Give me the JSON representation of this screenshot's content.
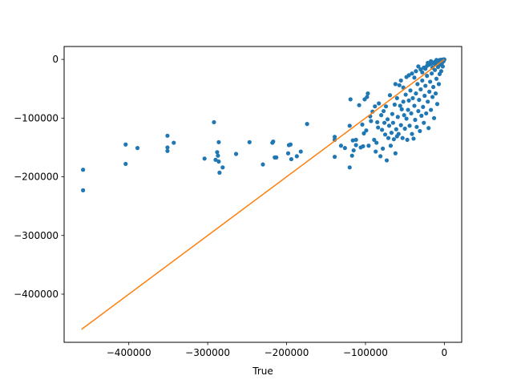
{
  "colors": {
    "scatter": "#1f77b4",
    "line": "#ff7f0e",
    "axis": "#000000",
    "background": "#ffffff"
  },
  "chart_data": {
    "type": "scatter",
    "title": "",
    "xlabel": "True",
    "ylabel": "",
    "xlim": [
      -482000,
      22000
    ],
    "ylim": [
      -482000,
      22000
    ],
    "grid": false,
    "xticks": [
      -400000,
      -300000,
      -200000,
      -100000,
      0
    ],
    "xtick_labels": [
      "−400000",
      "−300000",
      "−200000",
      "−100000",
      "0"
    ],
    "yticks": [
      0,
      -100000,
      -200000,
      -300000,
      -400000
    ],
    "ytick_labels": [
      "0",
      "−100000",
      "−200000",
      "−300000",
      "−400000"
    ],
    "series": [
      {
        "type": "scatter",
        "points": [
          [
            -458000,
            -188000
          ],
          [
            -458000,
            -223000
          ],
          [
            -404000,
            -145000
          ],
          [
            -404000,
            -178000
          ],
          [
            -389000,
            -151000
          ],
          [
            -351000,
            -130000
          ],
          [
            -351000,
            -150000
          ],
          [
            -351000,
            -156000
          ],
          [
            -343000,
            -142000
          ],
          [
            -304000,
            -169000
          ],
          [
            -292000,
            -107000
          ],
          [
            -290000,
            -171000
          ],
          [
            -288000,
            -158000
          ],
          [
            -287000,
            -164000
          ],
          [
            -286000,
            -141000
          ],
          [
            -286000,
            -174000
          ],
          [
            -285000,
            -193000
          ],
          [
            -281000,
            -184000
          ],
          [
            -264000,
            -161000
          ],
          [
            -247000,
            -141000
          ],
          [
            -230000,
            -179000
          ],
          [
            -218000,
            -142000
          ],
          [
            -217000,
            -140000
          ],
          [
            -215000,
            -167000
          ],
          [
            -213000,
            -167000
          ],
          [
            -198000,
            -160000
          ],
          [
            -197000,
            -146000
          ],
          [
            -195000,
            -145000
          ],
          [
            -194000,
            -170000
          ],
          [
            -187000,
            -165000
          ],
          [
            -182000,
            -157000
          ],
          [
            -174000,
            -110000
          ],
          [
            -139000,
            -132000
          ],
          [
            -139000,
            -137000
          ],
          [
            -139000,
            -166000
          ],
          [
            -131000,
            -147000
          ],
          [
            -126000,
            -151000
          ],
          [
            -120000,
            -113000
          ],
          [
            -120000,
            -184000
          ],
          [
            -119000,
            -68000
          ],
          [
            -117000,
            -164000
          ],
          [
            -116000,
            -138000
          ],
          [
            -115000,
            -155000
          ],
          [
            -112000,
            -137000
          ],
          [
            -112000,
            -146000
          ],
          [
            -108000,
            -78000
          ],
          [
            -106000,
            -150000
          ],
          [
            -104000,
            -111000
          ],
          [
            -103000,
            -148000
          ],
          [
            -102000,
            -126000
          ],
          [
            -101000,
            -68000
          ],
          [
            -99000,
            -121000
          ],
          [
            -98000,
            -64000
          ],
          [
            -97000,
            -58000
          ],
          [
            -96000,
            -147000
          ],
          [
            -94000,
            -97000
          ],
          [
            -93000,
            -105000
          ],
          [
            -91000,
            -89000
          ],
          [
            -89000,
            -137000
          ],
          [
            -88000,
            -80000
          ],
          [
            -87000,
            -157000
          ],
          [
            -86000,
            -142000
          ],
          [
            -85000,
            -107000
          ],
          [
            -84000,
            -116000
          ],
          [
            -83000,
            -75000
          ],
          [
            -81000,
            -165000
          ],
          [
            -80000,
            -95000
          ],
          [
            -79000,
            -120000
          ],
          [
            -78000,
            -152000
          ],
          [
            -77000,
            -88000
          ],
          [
            -76000,
            -108000
          ],
          [
            -75000,
            -128000
          ],
          [
            -74000,
            -80000
          ],
          [
            -73000,
            -172000
          ],
          [
            -72000,
            -102000
          ],
          [
            -71000,
            -134000
          ],
          [
            -70000,
            -113000
          ],
          [
            -69000,
            -61000
          ],
          [
            -68000,
            -147000
          ],
          [
            -67000,
            -125000
          ],
          [
            -66000,
            -93000
          ],
          [
            -65000,
            -108000
          ],
          [
            -64000,
            -136000
          ],
          [
            -63000,
            -77000
          ],
          [
            -62000,
            -160000
          ],
          [
            -61000,
            -119000
          ],
          [
            -60000,
            -131000
          ],
          [
            -60000,
            -66000
          ],
          [
            -59000,
            -98000
          ],
          [
            -58000,
            -127000
          ],
          [
            -57000,
            -44000
          ],
          [
            -56000,
            -79000
          ],
          [
            -55000,
            -112000
          ],
          [
            -54000,
            -85000
          ],
          [
            -53000,
            -134000
          ],
          [
            -52000,
            -72000
          ],
          [
            -51000,
            -95000
          ],
          [
            -50000,
            -118000
          ],
          [
            -49000,
            -60000
          ],
          [
            -48000,
            -101000
          ],
          [
            -47000,
            -137000
          ],
          [
            -46000,
            -86000
          ],
          [
            -45000,
            -70000
          ],
          [
            -44000,
            -113000
          ],
          [
            -43000,
            -53000
          ],
          [
            -42000,
            -92000
          ],
          [
            -41000,
            -127000
          ],
          [
            -40000,
            -66000
          ],
          [
            -39000,
            -135000
          ],
          [
            -38000,
            -79000
          ],
          [
            -37000,
            -103000
          ],
          [
            -36000,
            -58000
          ],
          [
            -35000,
            -115000
          ],
          [
            -34000,
            -42000
          ],
          [
            -33000,
            -88000
          ],
          [
            -32000,
            -69000
          ],
          [
            -31000,
            -122000
          ],
          [
            -30000,
            -51000
          ],
          [
            -29000,
            -96000
          ],
          [
            -28000,
            -36000
          ],
          [
            -27000,
            -81000
          ],
          [
            -26000,
            -108000
          ],
          [
            -25000,
            -62000
          ],
          [
            -24000,
            -45000
          ],
          [
            -23000,
            -92000
          ],
          [
            -22000,
            -28000
          ],
          [
            -21000,
            -72000
          ],
          [
            -20000,
            -117000
          ],
          [
            -19000,
            -55000
          ],
          [
            -18000,
            -38000
          ],
          [
            -17000,
            -86000
          ],
          [
            -16000,
            -24000
          ],
          [
            -15000,
            -64000
          ],
          [
            -14000,
            -47000
          ],
          [
            -13000,
            -100000
          ],
          [
            -12000,
            -18000
          ],
          [
            -11000,
            -58000
          ],
          [
            -10000,
            -33000
          ],
          [
            -9000,
            -76000
          ],
          [
            -8000,
            -13000
          ],
          [
            -7000,
            -42000
          ],
          [
            -6000,
            -25000
          ],
          [
            -5000,
            -9000
          ],
          [
            -4000,
            -20000
          ],
          [
            -3000,
            -6000
          ],
          [
            -2000,
            -12000
          ],
          [
            -1000,
            -3000
          ],
          [
            0,
            0
          ],
          [
            -62000,
            -42000
          ],
          [
            -55000,
            -36000
          ],
          [
            -48000,
            -30000
          ],
          [
            -41000,
            -24000
          ],
          [
            -36000,
            -20000
          ],
          [
            -30000,
            -17000
          ],
          [
            -26000,
            -14000
          ],
          [
            -22000,
            -11000
          ],
          [
            -19000,
            -9000
          ],
          [
            -16000,
            -7000
          ],
          [
            -13000,
            -5000
          ],
          [
            -11000,
            -4000
          ],
          [
            -9000,
            -3000
          ],
          [
            -7000,
            -2000
          ],
          [
            -5000,
            -1500
          ],
          [
            -3000,
            -800
          ],
          [
            -52000,
            -48000
          ],
          [
            -45000,
            -27000
          ],
          [
            -38000,
            -31000
          ],
          [
            -33000,
            -12000
          ],
          [
            -28000,
            -22000
          ],
          [
            -24000,
            -16000
          ],
          [
            -21000,
            -6000
          ],
          [
            -17000,
            -3000
          ],
          [
            -15000,
            -14000
          ],
          [
            -12000,
            -8000
          ],
          [
            -10000,
            -1000
          ],
          [
            -8000,
            -5000
          ],
          [
            -6000,
            -1000
          ],
          [
            -4000,
            -500
          ],
          [
            -2000,
            -300
          ],
          [
            -1000,
            -100
          ]
        ]
      },
      {
        "type": "line",
        "points": [
          [
            -460000,
            -460000
          ],
          [
            0,
            0
          ]
        ]
      }
    ]
  }
}
